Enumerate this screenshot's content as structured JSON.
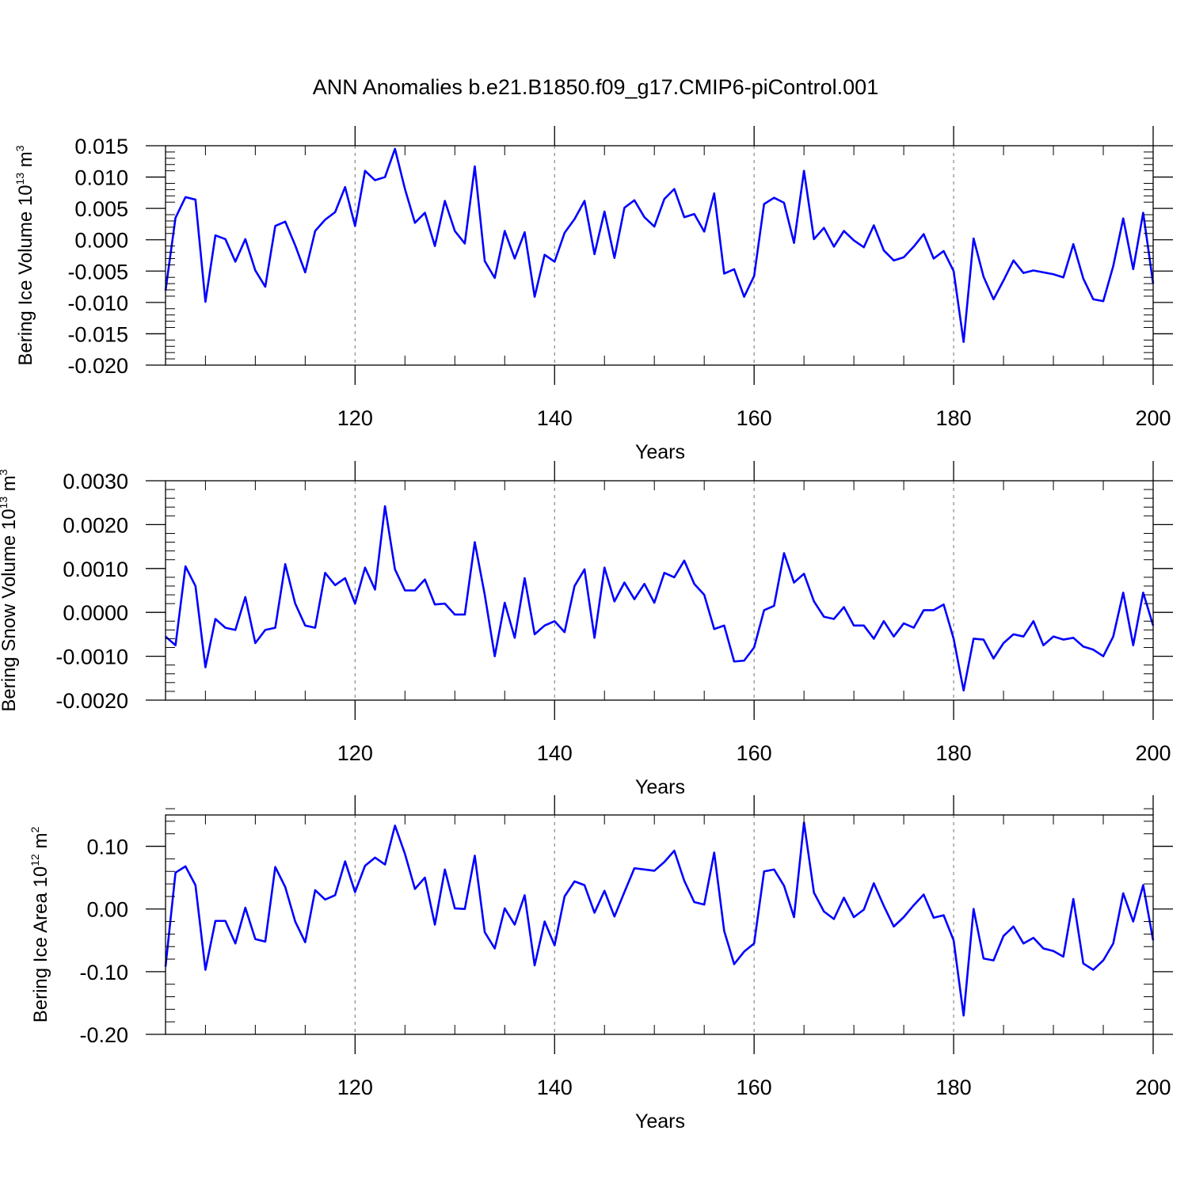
{
  "title": "ANN Anomalies b.e21.B1850.f09_g17.CMIP6-piControl.001",
  "colors": {
    "line": "#0000ff",
    "axis": "#000000",
    "grid": "#888888"
  },
  "chart_data": [
    {
      "type": "line",
      "xlabel": "Years",
      "ylabel_main": "Bering Ice Volume 10",
      "ylabel_exp": "13",
      "ylabel_unit": " m",
      "ylabel_unit_exp": "3",
      "xlim": [
        101,
        200
      ],
      "ylim": [
        -0.02,
        0.015
      ],
      "xticks": [
        120,
        140,
        160,
        180,
        200
      ],
      "yticks": [
        -0.02,
        -0.015,
        -0.01,
        -0.005,
        0.0,
        0.005,
        0.01,
        0.015
      ],
      "ytick_labels": [
        "-0.020",
        "-0.015",
        "-0.010",
        "-0.005",
        "0.000",
        "0.005",
        "0.010",
        "0.015"
      ],
      "series": [
        {
          "name": "Bering Ice Volume",
          "x_start": 101,
          "values": [
            -0.0081,
            0.0035,
            0.0068,
            0.0064,
            -0.0099,
            0.0007,
            0.0001,
            -0.0035,
            0.0001,
            -0.0049,
            -0.0075,
            0.0022,
            0.0029,
            -0.0009,
            -0.0052,
            0.0014,
            0.0032,
            0.0044,
            0.0084,
            0.0022,
            0.011,
            0.0095,
            0.01,
            0.0145,
            0.0081,
            0.0027,
            0.0043,
            -0.001,
            0.0062,
            0.0014,
            -0.0006,
            0.0117,
            -0.0034,
            -0.0061,
            0.0014,
            -0.003,
            0.0012,
            -0.0091,
            -0.0024,
            -0.0035,
            0.0011,
            0.0033,
            0.0062,
            -0.0023,
            0.0045,
            -0.0029,
            0.0051,
            0.0063,
            0.0036,
            0.0021,
            0.0065,
            0.0081,
            0.0036,
            0.0041,
            0.0013,
            0.0074,
            -0.0054,
            -0.0047,
            -0.0091,
            -0.0058,
            0.0057,
            0.0067,
            0.0059,
            -0.0005,
            0.011,
            0.0001,
            0.0019,
            -0.0011,
            0.0014,
            -0.0001,
            -0.0012,
            0.0023,
            -0.0017,
            -0.0033,
            -0.0028,
            -0.0011,
            0.0009,
            -0.003,
            -0.0018,
            -0.005,
            -0.0163,
            0.0002,
            -0.0059,
            -0.0095,
            -0.0065,
            -0.0033,
            -0.0053,
            -0.0049,
            -0.0052,
            -0.0055,
            -0.006,
            -0.0007,
            -0.0062,
            -0.0095,
            -0.0098,
            -0.0042,
            0.0034,
            -0.0047,
            0.0043,
            -0.007
          ]
        }
      ]
    },
    {
      "type": "line",
      "xlabel": "Years",
      "ylabel_main": "Bering Snow Volume 10",
      "ylabel_exp": "13",
      "ylabel_unit": " m",
      "ylabel_unit_exp": "3",
      "xlim": [
        101,
        200
      ],
      "ylim": [
        -0.002,
        0.003
      ],
      "xticks": [
        120,
        140,
        160,
        180,
        200
      ],
      "yticks": [
        -0.002,
        -0.001,
        0.0,
        0.001,
        0.002,
        0.003
      ],
      "ytick_labels": [
        "-0.0020",
        "-0.0010",
        "0.0000",
        "0.0010",
        "0.0020",
        "0.0030"
      ],
      "series": [
        {
          "name": "Bering Snow Volume",
          "x_start": 101,
          "values": [
            -0.00055,
            -0.00075,
            0.00105,
            0.0006,
            -0.00125,
            -0.00015,
            -0.00035,
            -0.0004,
            0.00035,
            -0.0007,
            -0.0004,
            -0.00035,
            0.0011,
            0.0002,
            -0.0003,
            -0.00035,
            0.0009,
            0.00062,
            0.00078,
            0.0002,
            0.00102,
            0.00052,
            0.00242,
            0.00098,
            0.0005,
            0.0005,
            0.00075,
            0.00018,
            0.0002,
            -5e-05,
            -5e-05,
            0.0016,
            0.0004,
            -0.001,
            0.00022,
            -0.00058,
            0.00078,
            -0.0005,
            -0.0003,
            -0.0002,
            -0.00045,
            0.0006,
            0.00098,
            -0.00058,
            0.00102,
            0.00025,
            0.00068,
            0.0003,
            0.00065,
            0.00022,
            0.0009,
            0.0008,
            0.00118,
            0.00065,
            0.0004,
            -0.00038,
            -0.0003,
            -0.00112,
            -0.0011,
            -0.0008,
            5e-05,
            0.00015,
            0.00135,
            0.00068,
            0.00088,
            0.00025,
            -0.0001,
            -0.00015,
            0.00012,
            -0.0003,
            -0.0003,
            -0.0006,
            -0.0002,
            -0.00055,
            -0.00025,
            -0.00035,
            5e-05,
            5e-05,
            0.00018,
            -0.0006,
            -0.00178,
            -0.0006,
            -0.00062,
            -0.00105,
            -0.0007,
            -0.0005,
            -0.00055,
            -0.0002,
            -0.00075,
            -0.00055,
            -0.00062,
            -0.00058,
            -0.00078,
            -0.00085,
            -0.001,
            -0.00055,
            0.00045,
            -0.00075,
            0.00045,
            -0.0003
          ]
        }
      ]
    },
    {
      "type": "line",
      "xlabel": "Years",
      "ylabel_main": "Bering Ice Area 10",
      "ylabel_exp": "12",
      "ylabel_unit": " m",
      "ylabel_unit_exp": "2",
      "xlim": [
        101,
        200
      ],
      "ylim": [
        -0.2,
        0.15
      ],
      "xticks": [
        120,
        140,
        160,
        180,
        200
      ],
      "yticks": [
        -0.2,
        -0.1,
        0.0,
        0.1
      ],
      "ytick_labels": [
        "-0.20",
        "-0.10",
        "0.00",
        "0.10"
      ],
      "series": [
        {
          "name": "Bering Ice Area",
          "x_start": 101,
          "values": [
            -0.092,
            0.058,
            0.068,
            0.038,
            -0.097,
            -0.019,
            -0.019,
            -0.055,
            0.002,
            -0.048,
            -0.052,
            0.067,
            0.035,
            -0.02,
            -0.053,
            0.03,
            0.015,
            0.022,
            0.076,
            0.027,
            0.069,
            0.082,
            0.071,
            0.133,
            0.088,
            0.032,
            0.05,
            -0.025,
            0.063,
            0.001,
            0.0,
            0.085,
            -0.037,
            -0.063,
            0.001,
            -0.025,
            0.022,
            -0.09,
            -0.02,
            -0.058,
            0.02,
            0.044,
            0.038,
            -0.006,
            0.029,
            -0.012,
            0.027,
            0.065,
            0.063,
            0.061,
            0.075,
            0.093,
            0.045,
            0.011,
            0.007,
            0.09,
            -0.035,
            -0.088,
            -0.068,
            -0.055,
            0.06,
            0.063,
            0.037,
            -0.013,
            0.138,
            0.026,
            -0.004,
            -0.016,
            0.018,
            -0.013,
            -0.001,
            0.041,
            0.005,
            -0.028,
            -0.013,
            0.006,
            0.023,
            -0.014,
            -0.01,
            -0.05,
            -0.17,
            0.0,
            -0.079,
            -0.082,
            -0.043,
            -0.028,
            -0.055,
            -0.046,
            -0.063,
            -0.067,
            -0.076,
            0.016,
            -0.087,
            -0.097,
            -0.082,
            -0.055,
            0.025,
            -0.02,
            0.038,
            -0.05
          ]
        }
      ]
    }
  ]
}
